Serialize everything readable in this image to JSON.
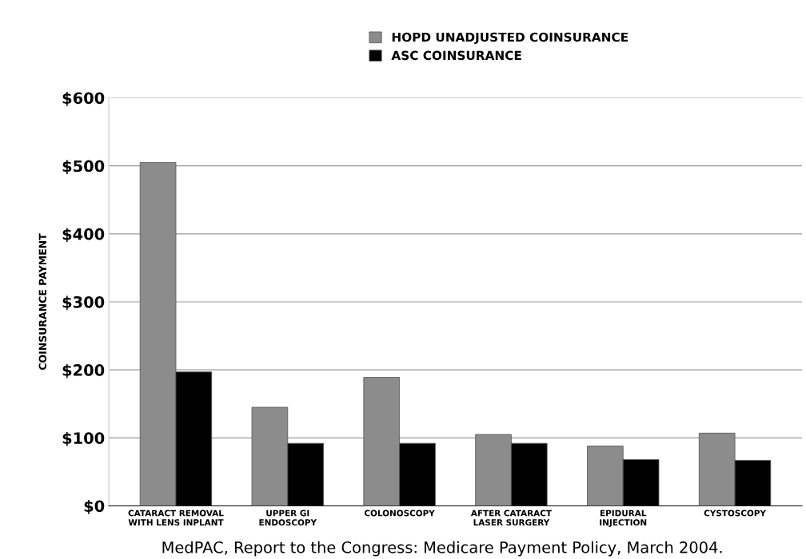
{
  "chart_data": {
    "type": "bar",
    "categories": [
      "CATARACT REMOVAL\nWITH LENS INPLANT",
      "UPPER GI\nENDOSCOPY",
      "COLONOSCOPY",
      "AFTER CATARACT\nLASER SURGERY",
      "EPIDURAL\nINJECTION",
      "CYSTOSCOPY"
    ],
    "series": [
      {
        "name": "HOPD UNADJUSTED COINSURANCE",
        "color": "#8c8c8c",
        "values": [
          505,
          145,
          189,
          105,
          88,
          107
        ]
      },
      {
        "name": "ASC COINSURANCE",
        "color": "#000000",
        "values": [
          197,
          92,
          92,
          92,
          68,
          67
        ]
      }
    ],
    "ylabel": "COINSURANCE PAYMENT",
    "ylim": [
      0,
      600
    ],
    "yticks": [
      {
        "value": 0,
        "label": "$0"
      },
      {
        "value": 100,
        "label": "$100"
      },
      {
        "value": 200,
        "label": "$200"
      },
      {
        "value": 300,
        "label": "$300"
      },
      {
        "value": 400,
        "label": "$400"
      },
      {
        "value": 500,
        "label": "$500"
      },
      {
        "value": 600,
        "label": "$600"
      }
    ],
    "grid": "y",
    "legend": "top",
    "annotations": [
      "MedPAC, Report to the Congress: Medicare Payment Policy, March 2004."
    ]
  }
}
